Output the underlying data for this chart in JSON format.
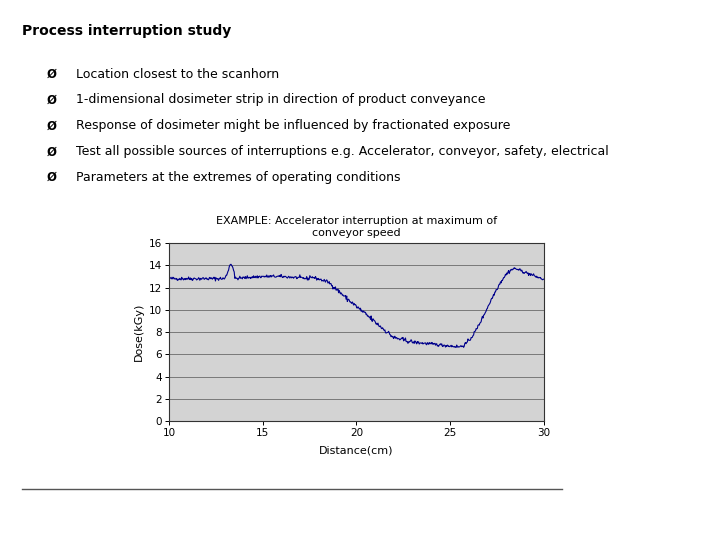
{
  "title": "Process interruption study",
  "bullet_points": [
    "Location closest to the scanhorn",
    "1-dimensional dosimeter strip in direction of product conveyance",
    "Response of dosimeter might be influenced by fractionated exposure",
    "Test all possible sources of interruptions e.g. Accelerator, conveyor, safety, electrical",
    "Parameters at the extremes of operating conditions"
  ],
  "chart_title_line1": "EXAMPLE: Accelerator interruption at maximum of",
  "chart_title_line2": "conveyor speed",
  "xlabel": "Distance(cm)",
  "ylabel": "Dose(kGy)",
  "xlim": [
    10,
    30
  ],
  "ylim": [
    0,
    16
  ],
  "xticks": [
    10,
    15,
    20,
    25,
    30
  ],
  "yticks": [
    0,
    2,
    4,
    6,
    8,
    10,
    12,
    14,
    16
  ],
  "line_color": "#00008B",
  "plot_bg": "#d3d3d3",
  "slide_bg": "#ffffff",
  "title_fontsize": 10,
  "bullet_fontsize": 9,
  "chart_title_fontsize": 8,
  "axis_fontsize": 7.5,
  "label_fontsize": 8,
  "nav_arrow_color": "#4a6fa5"
}
